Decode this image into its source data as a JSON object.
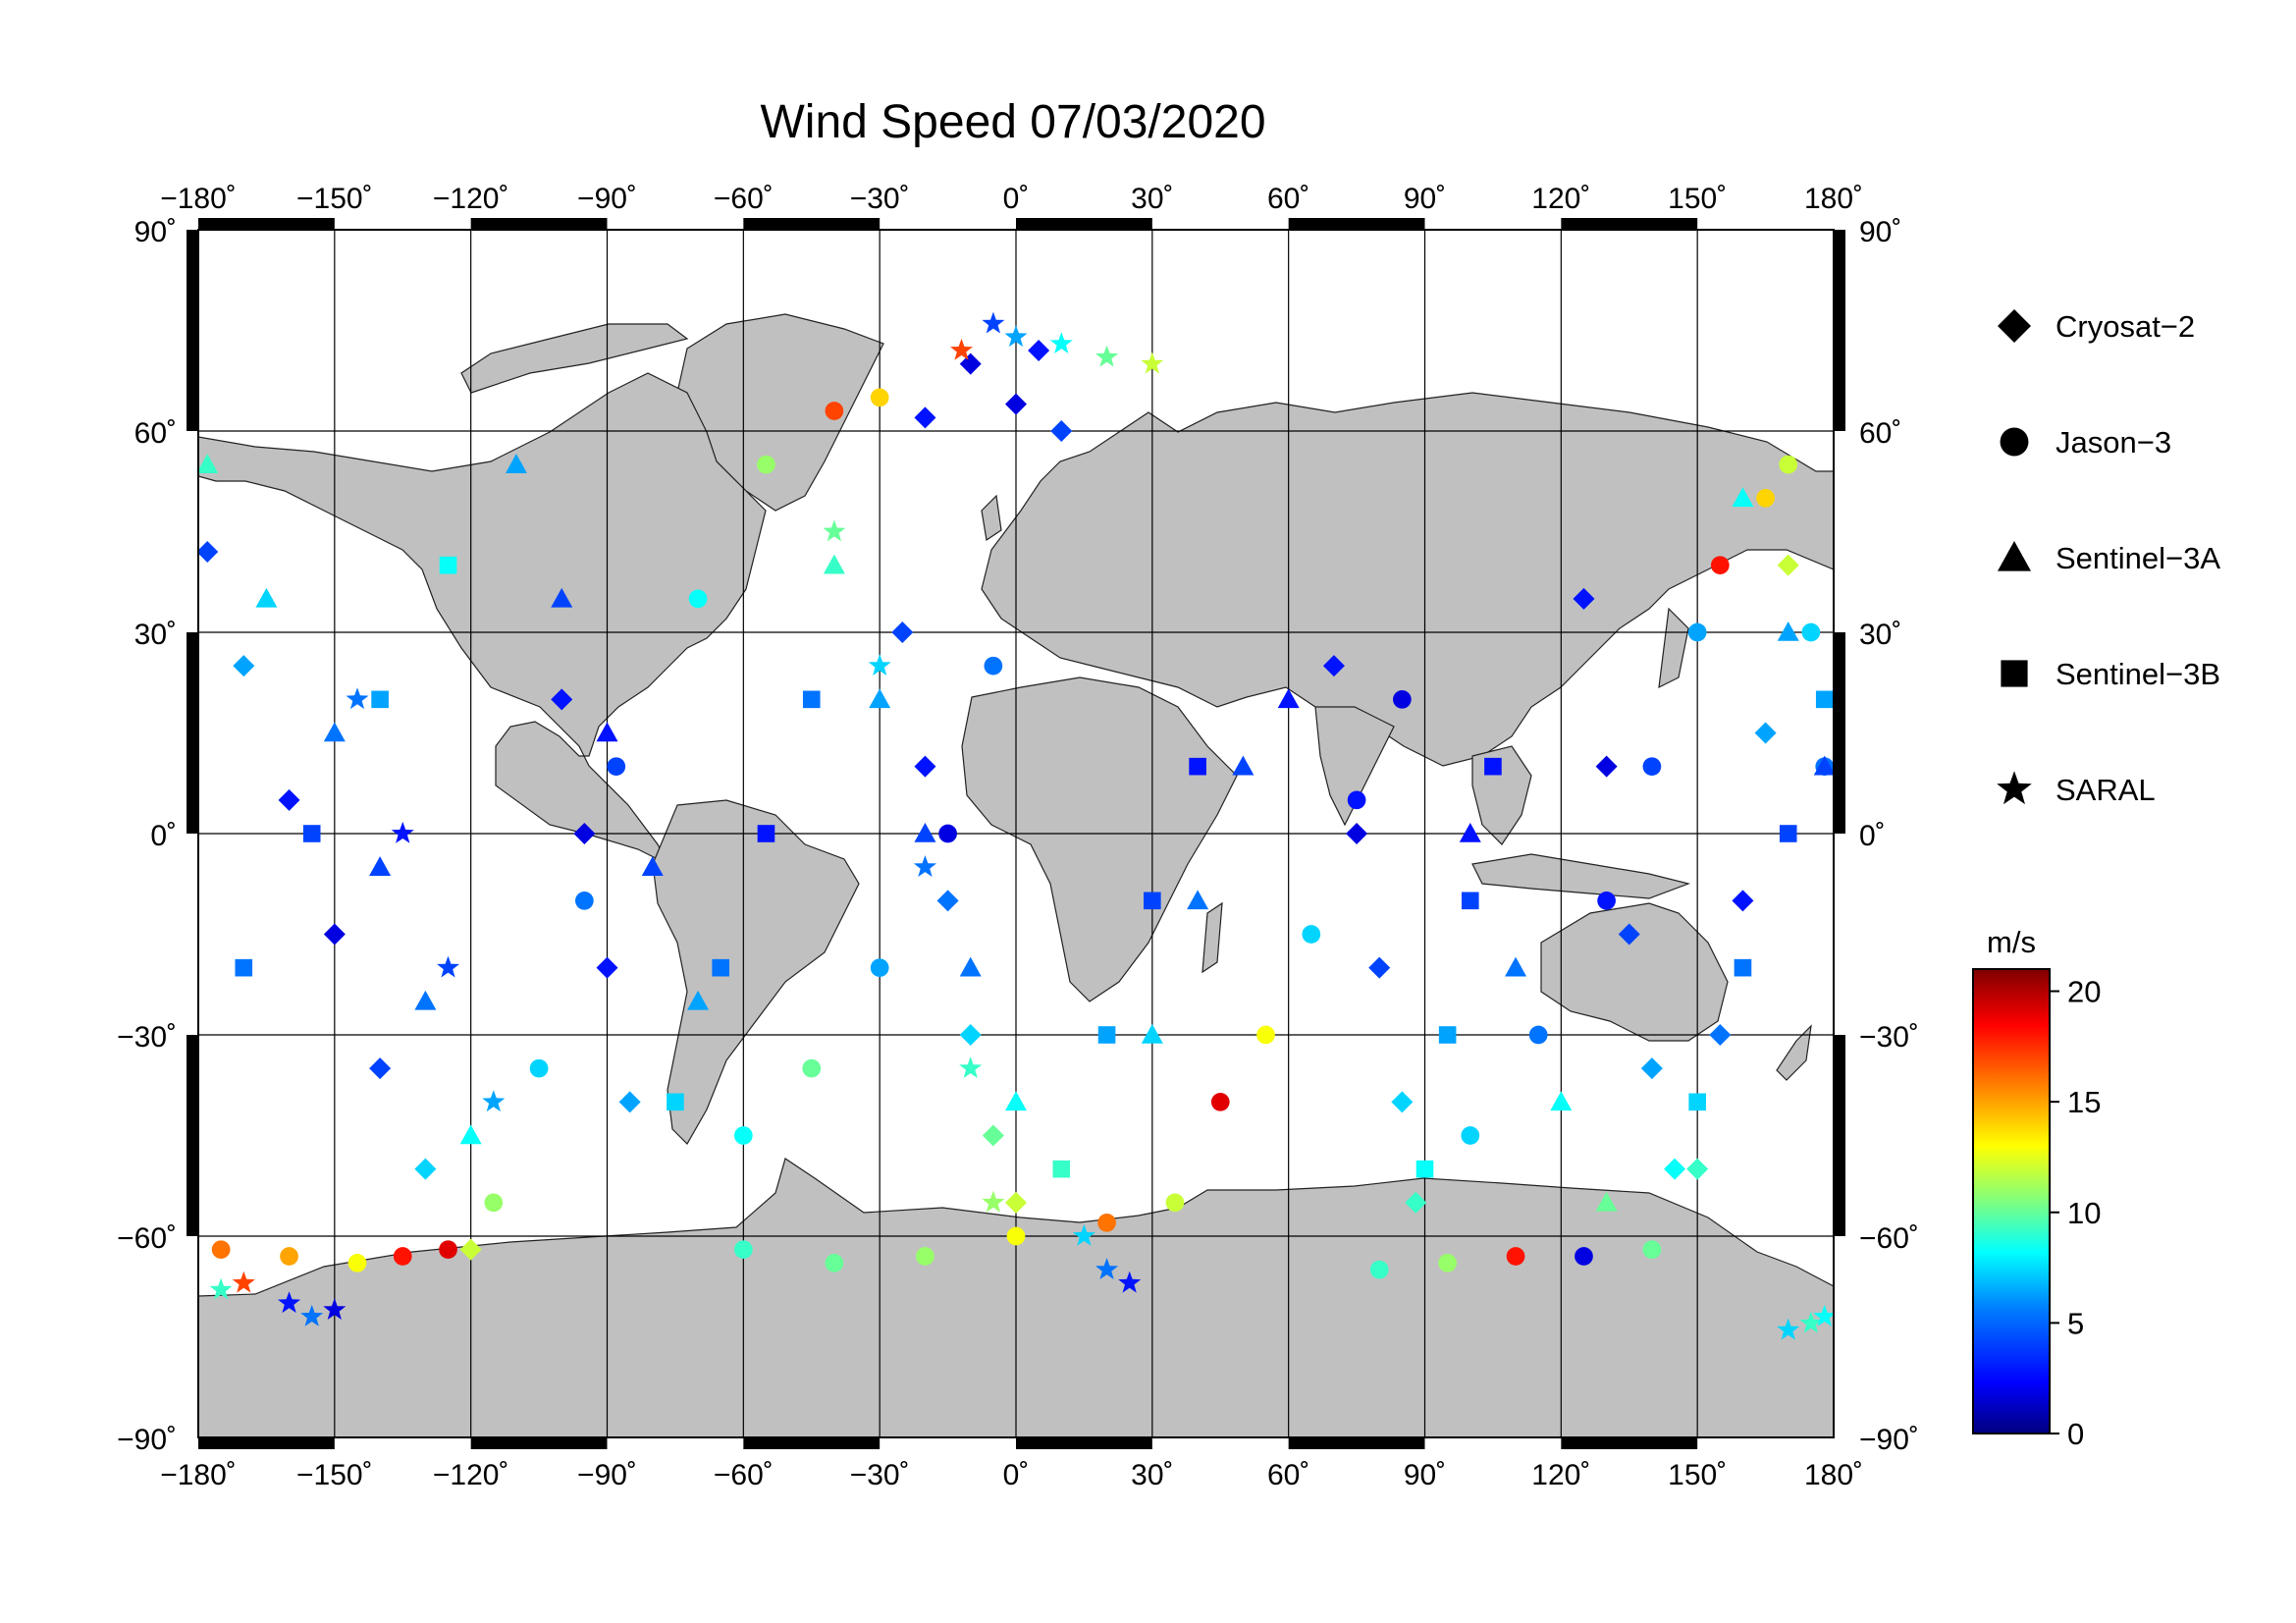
{
  "title": "Wind Speed 07/03/2020",
  "map": {
    "lon_range": [
      -180,
      180
    ],
    "lat_range": [
      -90,
      90
    ],
    "projection": "equirectangular",
    "grid": true,
    "land_color": "#c0c0c0",
    "ocean_color": "#ffffff",
    "lon_ticks": [
      {
        "value": -180,
        "label": "−180˚"
      },
      {
        "value": -150,
        "label": "−150˚"
      },
      {
        "value": -120,
        "label": "−120˚"
      },
      {
        "value": -90,
        "label": "−90˚"
      },
      {
        "value": -60,
        "label": "−60˚"
      },
      {
        "value": -30,
        "label": "−30˚"
      },
      {
        "value": 0,
        "label": "0˚"
      },
      {
        "value": 30,
        "label": "30˚"
      },
      {
        "value": 60,
        "label": "60˚"
      },
      {
        "value": 90,
        "label": "90˚"
      },
      {
        "value": 120,
        "label": "120˚"
      },
      {
        "value": 150,
        "label": "150˚"
      },
      {
        "value": 180,
        "label": "180˚"
      }
    ],
    "lat_ticks": [
      {
        "value": 90,
        "label": "90˚"
      },
      {
        "value": 60,
        "label": "60˚"
      },
      {
        "value": 30,
        "label": "30˚"
      },
      {
        "value": 0,
        "label": "0˚"
      },
      {
        "value": -30,
        "label": "−30˚"
      },
      {
        "value": -60,
        "label": "−60˚"
      },
      {
        "value": -90,
        "label": "−90˚"
      }
    ]
  },
  "legend": {
    "placement": "right",
    "items": [
      {
        "symbol": "diamond",
        "label": "Cryosat−2"
      },
      {
        "symbol": "circle",
        "label": "Jason−3"
      },
      {
        "symbol": "triangle",
        "label": "Sentinel−3A"
      },
      {
        "symbol": "square",
        "label": "Sentinel−3B"
      },
      {
        "symbol": "star",
        "label": "SARAL"
      }
    ]
  },
  "colorbar": {
    "unit": "m/s",
    "min": 0,
    "max": 21,
    "ticks": [
      {
        "value": 20,
        "label": "20"
      },
      {
        "value": 15,
        "label": "15"
      },
      {
        "value": 10,
        "label": "10"
      },
      {
        "value": 5,
        "label": "5"
      },
      {
        "value": 0,
        "label": "0"
      }
    ],
    "colormap": "jet",
    "stops": [
      "#00007f",
      "#0000ff",
      "#007fff",
      "#00ffff",
      "#7fff7f",
      "#ffff00",
      "#ff7f00",
      "#ff0000",
      "#7f0000"
    ]
  },
  "chart_data": {
    "type": "scatter",
    "title": "Wind Speed 07/03/2020",
    "xlim": [
      -180,
      180
    ],
    "ylim": [
      -90,
      90
    ],
    "value_unit": "m/s",
    "series": [
      {
        "name": "Cryosat−2",
        "symbol": "diamond",
        "points": [
          [
            -178,
            42,
            4
          ],
          [
            -170,
            25,
            6
          ],
          [
            -160,
            5,
            3
          ],
          [
            -150,
            -15,
            2
          ],
          [
            -140,
            -35,
            4
          ],
          [
            -130,
            -50,
            7
          ],
          [
            -120,
            -62,
            12
          ],
          [
            -100,
            20,
            3
          ],
          [
            -95,
            0,
            2
          ],
          [
            -90,
            -20,
            3
          ],
          [
            -85,
            -40,
            6
          ],
          [
            -20,
            62,
            3
          ],
          [
            -10,
            70,
            2
          ],
          [
            0,
            64,
            2
          ],
          [
            5,
            72,
            3
          ],
          [
            10,
            60,
            4
          ],
          [
            -25,
            30,
            4
          ],
          [
            -20,
            10,
            3
          ],
          [
            -15,
            -10,
            5
          ],
          [
            -10,
            -30,
            7
          ],
          [
            -5,
            -45,
            10
          ],
          [
            0,
            -55,
            12
          ],
          [
            70,
            25,
            3
          ],
          [
            75,
            0,
            2
          ],
          [
            80,
            -20,
            4
          ],
          [
            85,
            -40,
            7
          ],
          [
            88,
            -55,
            9
          ],
          [
            125,
            35,
            3
          ],
          [
            130,
            10,
            2
          ],
          [
            135,
            -15,
            4
          ],
          [
            140,
            -35,
            6
          ],
          [
            145,
            -50,
            8
          ],
          [
            170,
            40,
            12
          ],
          [
            165,
            15,
            6
          ],
          [
            160,
            -10,
            3
          ],
          [
            155,
            -30,
            5
          ],
          [
            150,
            -50,
            9
          ]
        ]
      },
      {
        "name": "Jason−3",
        "symbol": "circle",
        "points": [
          [
            -175,
            -62,
            16
          ],
          [
            -160,
            -63,
            15
          ],
          [
            -145,
            -64,
            13
          ],
          [
            -135,
            -63,
            18
          ],
          [
            -125,
            -62,
            19
          ],
          [
            -115,
            -55,
            11
          ],
          [
            -105,
            -35,
            7
          ],
          [
            -95,
            -10,
            5
          ],
          [
            -88,
            10,
            4
          ],
          [
            -70,
            35,
            8
          ],
          [
            -55,
            55,
            11
          ],
          [
            -40,
            63,
            17
          ],
          [
            -30,
            65,
            14
          ],
          [
            -60,
            -45,
            8
          ],
          [
            -45,
            -35,
            10
          ],
          [
            -30,
            -20,
            6
          ],
          [
            -15,
            0,
            2
          ],
          [
            -5,
            25,
            5
          ],
          [
            -60,
            -62,
            9
          ],
          [
            -40,
            -64,
            10
          ],
          [
            -20,
            -63,
            11
          ],
          [
            0,
            -60,
            13
          ],
          [
            20,
            -58,
            16
          ],
          [
            35,
            -55,
            12
          ],
          [
            45,
            -40,
            19
          ],
          [
            55,
            -30,
            13
          ],
          [
            65,
            -15,
            7
          ],
          [
            75,
            5,
            3
          ],
          [
            85,
            20,
            2
          ],
          [
            80,
            -65,
            9
          ],
          [
            95,
            -64,
            11
          ],
          [
            110,
            -63,
            18
          ],
          [
            125,
            -63,
            2
          ],
          [
            140,
            -62,
            10
          ],
          [
            155,
            40,
            18
          ],
          [
            165,
            50,
            14
          ],
          [
            170,
            55,
            12
          ],
          [
            175,
            30,
            7
          ],
          [
            178,
            10,
            5
          ],
          [
            100,
            -45,
            7
          ],
          [
            115,
            -30,
            5
          ],
          [
            130,
            -10,
            3
          ],
          [
            140,
            10,
            4
          ],
          [
            150,
            30,
            6
          ]
        ]
      },
      {
        "name": "Sentinel−3A",
        "symbol": "triangle",
        "points": [
          [
            -178,
            55,
            9
          ],
          [
            -165,
            35,
            7
          ],
          [
            -150,
            15,
            5
          ],
          [
            -140,
            -5,
            4
          ],
          [
            -130,
            -25,
            5
          ],
          [
            -120,
            -45,
            8
          ],
          [
            -110,
            55,
            6
          ],
          [
            -100,
            35,
            4
          ],
          [
            -90,
            15,
            3
          ],
          [
            -80,
            -5,
            4
          ],
          [
            -70,
            -25,
            6
          ],
          [
            -40,
            40,
            9
          ],
          [
            -30,
            20,
            6
          ],
          [
            -20,
            0,
            4
          ],
          [
            -10,
            -20,
            5
          ],
          [
            0,
            -40,
            8
          ],
          [
            30,
            -30,
            7
          ],
          [
            40,
            -10,
            5
          ],
          [
            50,
            10,
            4
          ],
          [
            60,
            20,
            3
          ],
          [
            100,
            0,
            3
          ],
          [
            110,
            -20,
            5
          ],
          [
            120,
            -40,
            8
          ],
          [
            130,
            -55,
            10
          ],
          [
            160,
            50,
            8
          ],
          [
            170,
            30,
            6
          ],
          [
            178,
            10,
            4
          ]
        ]
      },
      {
        "name": "Sentinel−3B",
        "symbol": "square",
        "points": [
          [
            -170,
            -20,
            5
          ],
          [
            -155,
            0,
            4
          ],
          [
            -140,
            20,
            6
          ],
          [
            -125,
            40,
            8
          ],
          [
            -75,
            -40,
            7
          ],
          [
            -65,
            -20,
            5
          ],
          [
            -55,
            0,
            3
          ],
          [
            -45,
            20,
            5
          ],
          [
            10,
            -50,
            9
          ],
          [
            20,
            -30,
            6
          ],
          [
            30,
            -10,
            4
          ],
          [
            40,
            10,
            3
          ],
          [
            90,
            -50,
            8
          ],
          [
            95,
            -30,
            6
          ],
          [
            100,
            -10,
            4
          ],
          [
            105,
            10,
            3
          ],
          [
            150,
            -40,
            7
          ],
          [
            160,
            -20,
            5
          ],
          [
            170,
            0,
            4
          ],
          [
            178,
            20,
            6
          ]
        ]
      },
      {
        "name": "SARAL",
        "symbol": "star",
        "points": [
          [
            -175,
            -68,
            9
          ],
          [
            -170,
            -67,
            17
          ],
          [
            -160,
            -70,
            3
          ],
          [
            -155,
            -72,
            5
          ],
          [
            -150,
            -71,
            2
          ],
          [
            -145,
            20,
            5
          ],
          [
            -135,
            0,
            3
          ],
          [
            -125,
            -20,
            4
          ],
          [
            -115,
            -40,
            6
          ],
          [
            -12,
            72,
            17
          ],
          [
            -5,
            76,
            4
          ],
          [
            0,
            74,
            6
          ],
          [
            10,
            73,
            8
          ],
          [
            20,
            71,
            10
          ],
          [
            30,
            70,
            12
          ],
          [
            -40,
            45,
            10
          ],
          [
            -30,
            25,
            7
          ],
          [
            -20,
            -5,
            5
          ],
          [
            -10,
            -35,
            9
          ],
          [
            -5,
            -55,
            11
          ],
          [
            15,
            -60,
            7
          ],
          [
            20,
            -65,
            5
          ],
          [
            25,
            -67,
            3
          ],
          [
            170,
            -74,
            7
          ],
          [
            175,
            -73,
            9
          ],
          [
            178,
            -72,
            8
          ]
        ]
      }
    ]
  }
}
